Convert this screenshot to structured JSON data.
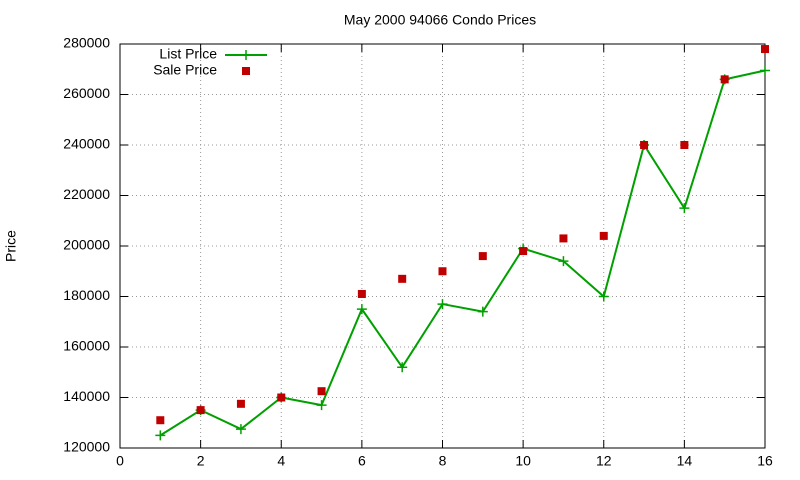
{
  "chart_data": {
    "type": "line",
    "title": "May 2000 94066 Condo Prices",
    "y_label": "Price",
    "x": [
      1,
      2,
      3,
      4,
      5,
      6,
      7,
      8,
      9,
      10,
      11,
      12,
      13,
      14,
      15,
      16
    ],
    "series": [
      {
        "name": "List Price",
        "color": "#00a000",
        "style": "lines-points",
        "marker": "plus",
        "values": [
          125000,
          135000,
          127500,
          140000,
          137000,
          175000,
          152000,
          177000,
          174000,
          199000,
          194000,
          180000,
          240000,
          215000,
          266000,
          269500
        ]
      },
      {
        "name": "Sale Price",
        "color": "#c00000",
        "style": "points",
        "marker": "square",
        "values": [
          131000,
          135000,
          137500,
          140000,
          142500,
          181000,
          187000,
          190000,
          196000,
          198000,
          203000,
          204000,
          240000,
          240000,
          266000,
          278000
        ]
      }
    ],
    "xlim": [
      0,
      16
    ],
    "xticks": [
      0,
      2,
      4,
      6,
      8,
      10,
      12,
      14,
      16
    ],
    "ylim": [
      120000,
      280000
    ],
    "yticks": [
      120000,
      140000,
      160000,
      180000,
      200000,
      220000,
      240000,
      260000,
      280000
    ],
    "grid": true,
    "legend": "top-left"
  }
}
